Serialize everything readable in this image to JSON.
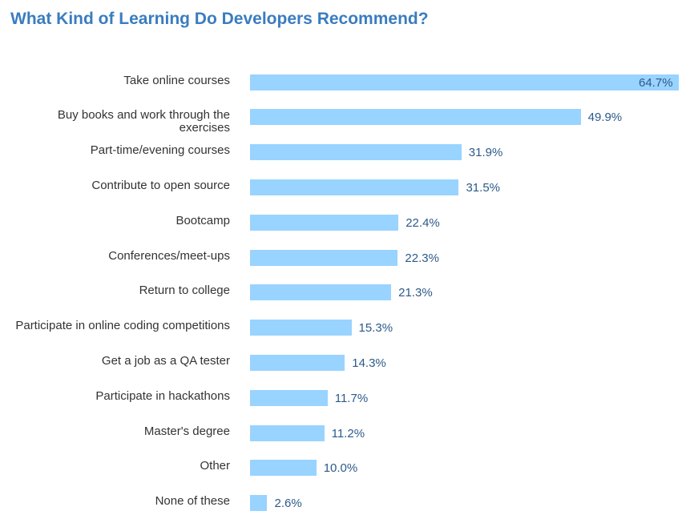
{
  "chart_data": {
    "type": "bar",
    "orientation": "horizontal",
    "title": "What Kind of Learning Do Developers Recommend?",
    "categories": [
      "Take online courses",
      "Buy books and work through the exercises",
      "Part-time/evening courses",
      "Contribute to open source",
      "Bootcamp",
      "Conferences/meet-ups",
      "Return to college",
      "Participate in online coding competitions",
      "Get a job as a QA tester",
      "Participate in hackathons",
      "Master's degree",
      "Other",
      "None of these"
    ],
    "values": [
      64.7,
      49.9,
      31.9,
      31.5,
      22.4,
      22.3,
      21.3,
      15.3,
      14.3,
      11.7,
      11.2,
      10.0,
      2.6
    ],
    "value_labels": [
      "64.7%",
      "49.9%",
      "31.9%",
      "31.5%",
      "22.4%",
      "22.3%",
      "21.3%",
      "15.3%",
      "14.3%",
      "11.7%",
      "11.2%",
      "10.0%",
      "2.6%"
    ],
    "xlabel": "",
    "ylabel": "",
    "xlim": [
      0,
      64.7
    ],
    "grid": false,
    "colors": {
      "bar": "#99d3ff",
      "title": "#3a7cc0",
      "value_label": "#2c5a8a"
    }
  }
}
